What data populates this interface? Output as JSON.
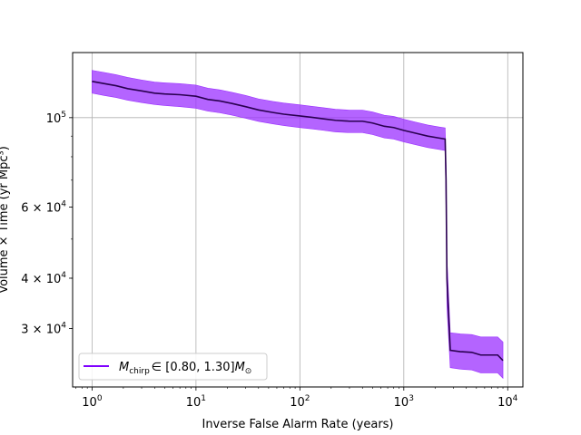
{
  "chart_data": {
    "type": "line",
    "xlabel": "Inverse False Alarm Rate (years)",
    "ylabel": "Volume × Time (yr Mpc³)",
    "xscale": "log",
    "yscale": "log",
    "xlim": [
      0.65,
      14000
    ],
    "ylim": [
      21500,
      145000
    ],
    "grid": true,
    "legend_placement": "lower-left",
    "x_ticks": [
      {
        "value": 1,
        "base": "10",
        "exp": "0"
      },
      {
        "value": 10,
        "base": "10",
        "exp": "1"
      },
      {
        "value": 100,
        "base": "10",
        "exp": "2"
      },
      {
        "value": 1000,
        "base": "10",
        "exp": "3"
      },
      {
        "value": 10000,
        "base": "10",
        "exp": "4"
      }
    ],
    "y_ticks": [
      {
        "value": 30000,
        "mant": "3 × 10",
        "exp": "4"
      },
      {
        "value": 40000,
        "mant": "4 × 10",
        "exp": "4"
      },
      {
        "value": 60000,
        "mant": "6 × 10",
        "exp": "4"
      },
      {
        "value": 100000,
        "mant": "10",
        "exp": "5"
      }
    ],
    "y_grid_values": [
      100000
    ],
    "series": [
      {
        "name": "M_chirp ∈ [0.80, 1.30] M_⊙",
        "legend": {
          "symbol": "M",
          "subscript": "chirp",
          "range": "∈ [0.80, 1.30]",
          "unit": "M",
          "unit_subscript": "⊙"
        },
        "line_color": "#2a0050",
        "band_color": "#9b30ff",
        "legend_line_color": "#7f00ff",
        "x": [
          1,
          1.3,
          1.7,
          2.2,
          3,
          4,
          5,
          7,
          10,
          13,
          17,
          22,
          30,
          40,
          55,
          70,
          100,
          130,
          170,
          220,
          300,
          400,
          500,
          650,
          800,
          1000,
          1300,
          1700,
          2200,
          2500,
          2550,
          2600,
          2800,
          3500,
          4500,
          5500,
          6500,
          8000,
          9000
        ],
        "y": [
          123000,
          121500,
          120000,
          118000,
          116500,
          115000,
          114500,
          114000,
          113000,
          111000,
          110000,
          108500,
          106500,
          104500,
          103000,
          102000,
          101000,
          100200,
          99300,
          98500,
          98000,
          98000,
          97000,
          95200,
          94500,
          93000,
          91500,
          90000,
          89000,
          88500,
          70000,
          40000,
          26500,
          26300,
          26200,
          25800,
          25800,
          25800,
          25000
        ],
        "lower": [
          115000,
          113500,
          112200,
          110500,
          109000,
          107800,
          107200,
          106500,
          105500,
          103800,
          102800,
          101500,
          99700,
          97900,
          96500,
          95600,
          94500,
          93800,
          93000,
          92200,
          91800,
          91800,
          90800,
          89100,
          88500,
          87100,
          85700,
          84300,
          83400,
          82900,
          60000,
          34000,
          24000,
          23800,
          23700,
          23300,
          23300,
          23300,
          22600
        ],
        "upper": [
          131000,
          129500,
          127800,
          125800,
          124000,
          122500,
          122000,
          121400,
          120400,
          118300,
          117200,
          115600,
          113500,
          111300,
          109700,
          108700,
          107600,
          106700,
          105800,
          104900,
          104400,
          104400,
          103300,
          101400,
          100700,
          99100,
          97500,
          95900,
          94800,
          94300,
          76000,
          45000,
          29300,
          29100,
          29000,
          28600,
          28600,
          28600,
          27800
        ]
      }
    ]
  }
}
